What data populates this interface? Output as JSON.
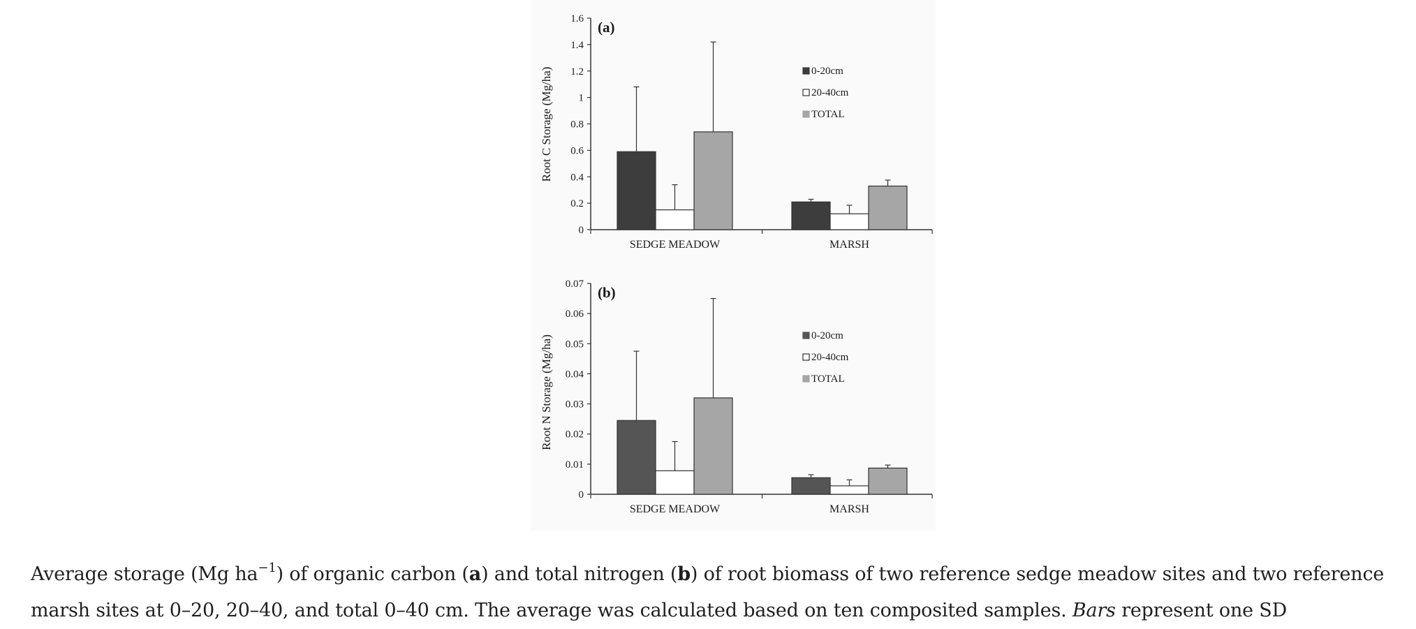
{
  "chart_data": [
    {
      "type": "bar",
      "panel_label": "(a)",
      "title": "",
      "xlabel": "",
      "ylabel": "Root C Storage (Mg/ha)",
      "categories": [
        "SEDGE MEADOW",
        "MARSH"
      ],
      "ylim": [
        0,
        1.6
      ],
      "yticks": [
        "0",
        "0.2",
        "0.4",
        "0.6",
        "0.8",
        "1",
        "1.2",
        "1.4",
        "1.6"
      ],
      "grid": false,
      "legend_position": "upper-right",
      "series": [
        {
          "name": "0-20cm",
          "color": "#3d3d3d",
          "values": [
            0.59,
            0.21
          ],
          "errors": [
            0.49,
            0.02
          ]
        },
        {
          "name": "20-40cm",
          "color": "#ffffff",
          "values": [
            0.15,
            0.12
          ],
          "errors": [
            0.19,
            0.065
          ]
        },
        {
          "name": "TOTAL",
          "color": "#a6a6a6",
          "values": [
            0.74,
            0.33
          ],
          "errors": [
            0.68,
            0.045
          ]
        }
      ]
    },
    {
      "type": "bar",
      "panel_label": "(b)",
      "title": "",
      "xlabel": "",
      "ylabel": "Root N Storage (Mg/ha)",
      "categories": [
        "SEDGE MEADOW",
        "MARSH"
      ],
      "ylim": [
        0,
        0.07
      ],
      "yticks": [
        "0",
        "0.01",
        "0.02",
        "0.03",
        "0.04",
        "0.05",
        "0.06",
        "0.07"
      ],
      "grid": false,
      "legend_position": "upper-right",
      "series": [
        {
          "name": "0-20cm",
          "color": "#555555",
          "values": [
            0.0245,
            0.0055
          ],
          "errors": [
            0.023,
            0.001
          ]
        },
        {
          "name": "20-40cm",
          "color": "#ffffff",
          "values": [
            0.0078,
            0.0028
          ],
          "errors": [
            0.0097,
            0.002
          ]
        },
        {
          "name": "TOTAL",
          "color": "#a6a6a6",
          "values": [
            0.032,
            0.0087
          ],
          "errors": [
            0.033,
            0.001
          ]
        }
      ]
    }
  ],
  "caption": {
    "part1": "Average storage (Mg ha",
    "sup": "−1",
    "part2": ") of organic carbon (",
    "bold_a": "a",
    "part3": ") and total nitrogen (",
    "bold_b": "b",
    "part4": ") of root biomass of two reference sedge meadow sites and two reference marsh sites at 0–20, 20–40, and total 0–40 cm. The average was calculated based on ten composited samples. ",
    "italic": "Bars",
    "part5": " represent one SD"
  }
}
